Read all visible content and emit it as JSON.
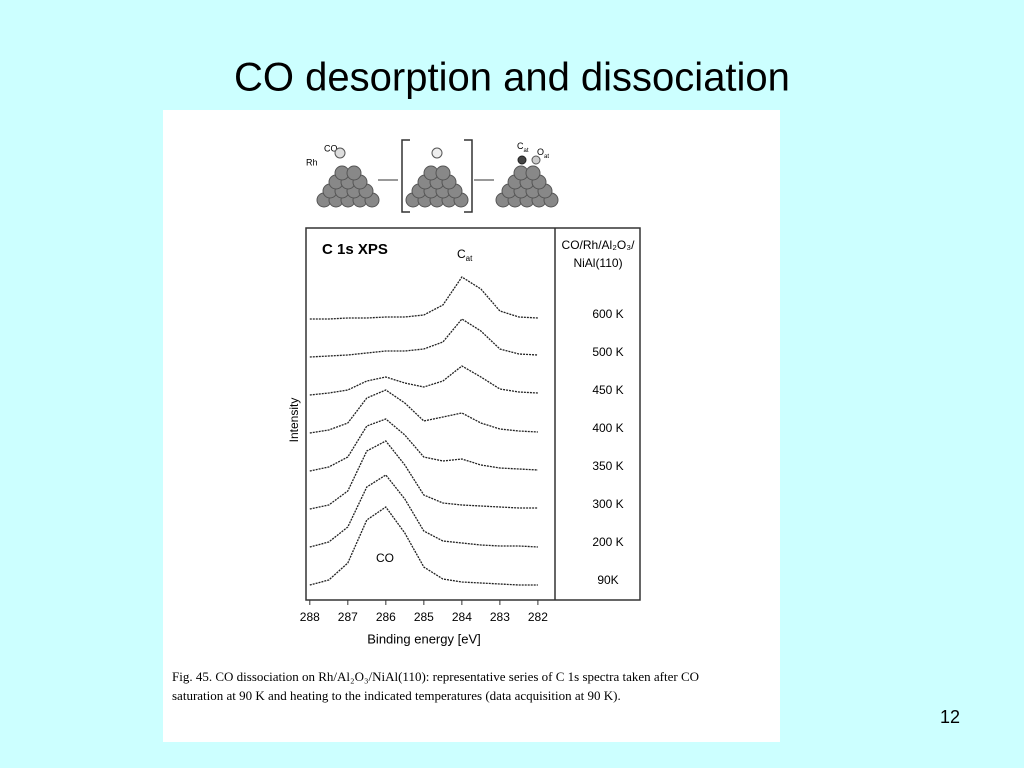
{
  "slide": {
    "title": "CO desorption and dissociation",
    "page_number": "12"
  },
  "figure": {
    "scheme": {
      "co": "CO",
      "rh": "Rh",
      "c": "C",
      "c_sub": "at",
      "o": "O",
      "o_sub": "at"
    },
    "caption": [
      "Fig. 45. CO dissociation on Rh/Al₂O₃/NiAl(110): representative series of C 1s spectra taken after CO",
      "saturation at 90 K and heating to the indicated temperatures (data acquisition at 90 K)."
    ]
  },
  "chart_data": {
    "type": "line",
    "title": "C 1s XPS",
    "x_label": "Binding energy [eV]",
    "y_label": "Intensity",
    "legend_title": [
      "CO/Rh/Al₂O₃/",
      "NiAl(110)"
    ],
    "peak_labels": {
      "c": "C",
      "c_sub": "at",
      "co": "CO"
    },
    "xlim": [
      288.1,
      281.55
    ],
    "xticks": [
      288,
      287,
      286,
      285,
      284,
      283,
      282
    ],
    "x": [
      288,
      287.5,
      287,
      286.5,
      286,
      285.5,
      285,
      284.5,
      284,
      283.5,
      283,
      282.5,
      282
    ],
    "series": [
      {
        "name": "600 K",
        "color": "#222222",
        "values": [
          0,
          0,
          1,
          1,
          2,
          2,
          4,
          14,
          42,
          30,
          8,
          2,
          1
        ]
      },
      {
        "name": "500 K",
        "color": "#222222",
        "values": [
          0,
          1,
          2,
          4,
          6,
          6,
          8,
          15,
          38,
          26,
          8,
          3,
          2
        ]
      },
      {
        "name": "450 K",
        "color": "#222222",
        "values": [
          0,
          2,
          5,
          14,
          18,
          12,
          8,
          14,
          29,
          18,
          6,
          3,
          2
        ]
      },
      {
        "name": "400 K",
        "color": "#222222",
        "values": [
          0,
          3,
          10,
          35,
          43,
          30,
          12,
          16,
          20,
          10,
          4,
          2,
          1
        ]
      },
      {
        "name": "350 K",
        "color": "#222222",
        "values": [
          0,
          4,
          14,
          45,
          52,
          36,
          14,
          10,
          12,
          6,
          3,
          2,
          1
        ]
      },
      {
        "name": "300 K",
        "color": "#222222",
        "values": [
          0,
          4,
          18,
          58,
          68,
          44,
          14,
          6,
          4,
          3,
          2,
          1,
          1
        ]
      },
      {
        "name": "200 K",
        "color": "#222222",
        "values": [
          0,
          5,
          20,
          60,
          72,
          48,
          16,
          6,
          4,
          2,
          1,
          1,
          0
        ]
      },
      {
        "name": "90K",
        "color": "#222222",
        "values": [
          0,
          5,
          22,
          65,
          78,
          52,
          18,
          6,
          3,
          2,
          1,
          0,
          0
        ]
      }
    ]
  }
}
